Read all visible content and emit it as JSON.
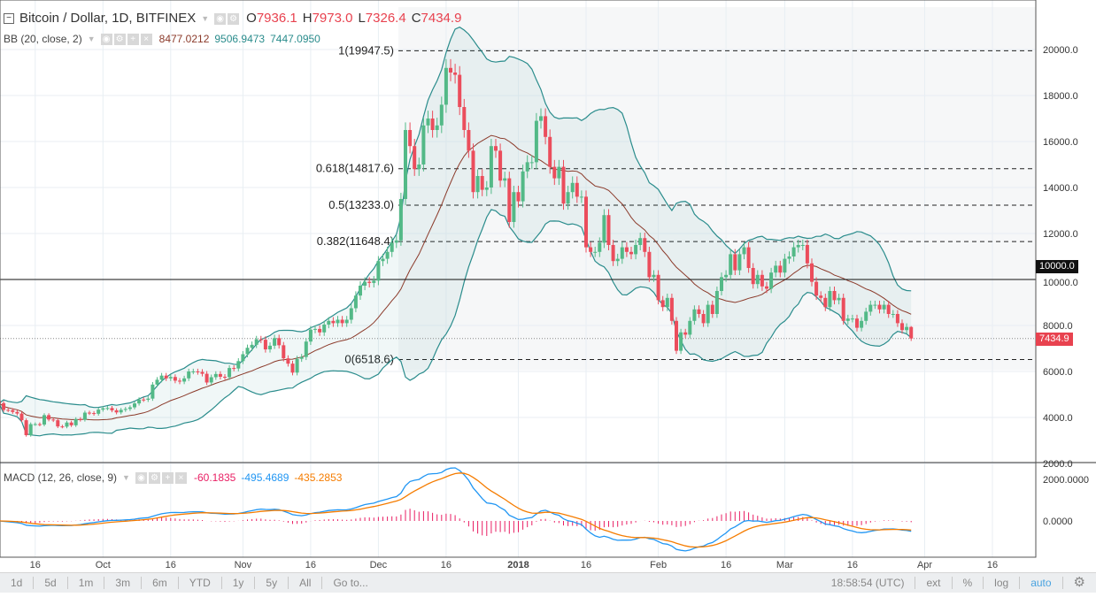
{
  "header": {
    "symbol": "Bitcoin / Dollar, 1D, BITFINEX",
    "open_label": "O",
    "open": "7936.1",
    "high_label": "H",
    "high": "7973.0",
    "low_label": "L",
    "low": "7326.4",
    "close_label": "C",
    "close": "7434.9"
  },
  "bb_legend": {
    "name": "BB (20, close, 2)",
    "basis": "8477.0212",
    "upper": "9506.9473",
    "lower": "7447.0950"
  },
  "macd_legend": {
    "name": "MACD (12, 26, close, 9)",
    "hist": "-60.1835",
    "macd": "-495.4689",
    "signal": "-435.2853"
  },
  "colors": {
    "up": "#53b987",
    "down": "#eb4d5c",
    "band": "#2a8c8c",
    "basis": "#8b3a2a",
    "macd": "#2196f3",
    "signal": "#f57c00",
    "hist": "#e91e63"
  },
  "price_axis": {
    "ticks": [
      "2000.0",
      "4000.0",
      "6000.0",
      "8000.0",
      "10000.0",
      "12000.0",
      "14000.0",
      "16000.0",
      "18000.0",
      "20000.0"
    ],
    "horizontal_line": "10000.0",
    "last_price": "7434.9"
  },
  "macd_axis": {
    "ticks": [
      "2000.0000",
      "0.0000"
    ]
  },
  "fib": [
    {
      "label": "1(19947.5)",
      "price": 19947.5
    },
    {
      "label": "0.618(14817.6)",
      "price": 14817.6
    },
    {
      "label": "0.5(13233.0)",
      "price": 13233.0
    },
    {
      "label": "0.382(11648.4)",
      "price": 11648.4
    },
    {
      "label": "0(6518.6)",
      "price": 6518.6
    }
  ],
  "time_axis": [
    {
      "text": "16",
      "date": "2017-09-16"
    },
    {
      "text": "Oct",
      "date": "2017-10-01"
    },
    {
      "text": "16",
      "date": "2017-10-16"
    },
    {
      "text": "Nov",
      "date": "2017-11-01"
    },
    {
      "text": "16",
      "date": "2017-11-16"
    },
    {
      "text": "Dec",
      "date": "2017-12-01"
    },
    {
      "text": "16",
      "date": "2017-12-16"
    },
    {
      "text": "2018",
      "date": "2018-01-01"
    },
    {
      "text": "16",
      "date": "2018-01-16"
    },
    {
      "text": "Feb",
      "date": "2018-02-01"
    },
    {
      "text": "16",
      "date": "2018-02-16"
    },
    {
      "text": "Mar",
      "date": "2018-03-01"
    },
    {
      "text": "16",
      "date": "2018-03-16"
    },
    {
      "text": "Apr",
      "date": "2018-04-01"
    },
    {
      "text": "16",
      "date": "2018-04-16"
    }
  ],
  "toolbar": {
    "ranges": [
      "1d",
      "5d",
      "1m",
      "3m",
      "6m",
      "YTD",
      "1y",
      "5y",
      "All"
    ],
    "goto": "Go to...",
    "time": "18:58:54 (UTC)",
    "ext": "ext",
    "percent": "%",
    "log": "log",
    "auto": "auto"
  },
  "chart_data": {
    "type": "candlestick",
    "title": "Bitcoin / Dollar, 1D, BITFINEX",
    "indicators": [
      "BB (20, close, 2)",
      "MACD (12, 26, close, 9)"
    ],
    "ylim": [
      2000,
      21500
    ],
    "grid": true,
    "last": {
      "open": 7936.1,
      "high": 7973.0,
      "low": 7326.4,
      "close": 7434.9
    },
    "candles": [
      [
        "2017-09-08",
        4620
      ],
      [
        "2017-09-09",
        4330
      ],
      [
        "2017-09-10",
        4320
      ],
      [
        "2017-09-11",
        4240
      ],
      [
        "2017-09-12",
        4170
      ],
      [
        "2017-09-13",
        3880
      ],
      [
        "2017-09-14",
        3230
      ],
      [
        "2017-09-15",
        3710
      ],
      [
        "2017-09-16",
        3710
      ],
      [
        "2017-09-17",
        3690
      ],
      [
        "2017-09-18",
        4100
      ],
      [
        "2017-09-19",
        3910
      ],
      [
        "2017-09-20",
        3880
      ],
      [
        "2017-09-21",
        3610
      ],
      [
        "2017-09-22",
        3600
      ],
      [
        "2017-09-23",
        3780
      ],
      [
        "2017-09-24",
        3660
      ],
      [
        "2017-09-25",
        3930
      ],
      [
        "2017-09-26",
        3900
      ],
      [
        "2017-09-27",
        4210
      ],
      [
        "2017-09-28",
        4190
      ],
      [
        "2017-09-29",
        4160
      ],
      [
        "2017-09-30",
        4340
      ],
      [
        "2017-10-01",
        4400
      ],
      [
        "2017-10-02",
        4410
      ],
      [
        "2017-10-03",
        4310
      ],
      [
        "2017-10-04",
        4220
      ],
      [
        "2017-10-05",
        4330
      ],
      [
        "2017-10-06",
        4370
      ],
      [
        "2017-10-07",
        4440
      ],
      [
        "2017-10-08",
        4610
      ],
      [
        "2017-10-09",
        4780
      ],
      [
        "2017-10-10",
        4770
      ],
      [
        "2017-10-11",
        4820
      ],
      [
        "2017-10-12",
        5430
      ],
      [
        "2017-10-13",
        5640
      ],
      [
        "2017-10-14",
        5820
      ],
      [
        "2017-10-15",
        5700
      ],
      [
        "2017-10-16",
        5760
      ],
      [
        "2017-10-17",
        5600
      ],
      [
        "2017-10-18",
        5560
      ],
      [
        "2017-10-19",
        5700
      ],
      [
        "2017-10-20",
        6000
      ],
      [
        "2017-10-21",
        6000
      ],
      [
        "2017-10-22",
        5980
      ],
      [
        "2017-10-23",
        5900
      ],
      [
        "2017-10-24",
        5520
      ],
      [
        "2017-10-25",
        5750
      ],
      [
        "2017-10-26",
        5890
      ],
      [
        "2017-10-27",
        5770
      ],
      [
        "2017-10-28",
        5750
      ],
      [
        "2017-10-29",
        6150
      ],
      [
        "2017-10-30",
        6130
      ],
      [
        "2017-10-31",
        6450
      ],
      [
        "2017-11-01",
        6750
      ],
      [
        "2017-11-02",
        7030
      ],
      [
        "2017-11-03",
        7160
      ],
      [
        "2017-11-04",
        7400
      ],
      [
        "2017-11-05",
        7380
      ],
      [
        "2017-11-06",
        6960
      ],
      [
        "2017-11-07",
        7120
      ],
      [
        "2017-11-08",
        7450
      ],
      [
        "2017-11-09",
        7140
      ],
      [
        "2017-11-10",
        6570
      ],
      [
        "2017-11-11",
        6340
      ],
      [
        "2017-11-12",
        5950
      ],
      [
        "2017-11-13",
        6550
      ],
      [
        "2017-11-14",
        6630
      ],
      [
        "2017-11-15",
        7300
      ],
      [
        "2017-11-16",
        7820
      ],
      [
        "2017-11-17",
        7850
      ],
      [
        "2017-11-18",
        7700
      ],
      [
        "2017-11-19",
        8040
      ],
      [
        "2017-11-20",
        8200
      ],
      [
        "2017-11-21",
        8100
      ],
      [
        "2017-11-22",
        8250
      ],
      [
        "2017-11-23",
        8100
      ],
      [
        "2017-11-24",
        8250
      ],
      [
        "2017-11-25",
        8750
      ],
      [
        "2017-11-26",
        9300
      ],
      [
        "2017-11-27",
        9730
      ],
      [
        "2017-11-28",
        9900
      ],
      [
        "2017-11-29",
        9850
      ],
      [
        "2017-11-30",
        9950
      ],
      [
        "2017-12-01",
        10800
      ],
      [
        "2017-12-02",
        10900
      ],
      [
        "2017-12-03",
        11200
      ],
      [
        "2017-12-04",
        11600
      ],
      [
        "2017-12-05",
        11700
      ],
      [
        "2017-12-06",
        13500
      ],
      [
        "2017-12-07",
        16500
      ],
      [
        "2017-12-08",
        15800
      ],
      [
        "2017-12-09",
        14800
      ],
      [
        "2017-12-10",
        15000
      ],
      [
        "2017-12-11",
        16700
      ],
      [
        "2017-12-12",
        17000
      ],
      [
        "2017-12-13",
        16500
      ],
      [
        "2017-12-14",
        16700
      ],
      [
        "2017-12-15",
        17600
      ],
      [
        "2017-12-16",
        19200
      ],
      [
        "2017-12-17",
        19000
      ],
      [
        "2017-12-18",
        18900
      ],
      [
        "2017-12-19",
        17500
      ],
      [
        "2017-12-20",
        16500
      ],
      [
        "2017-12-21",
        15600
      ],
      [
        "2017-12-22",
        13800
      ],
      [
        "2017-12-23",
        14500
      ],
      [
        "2017-12-24",
        13900
      ],
      [
        "2017-12-25",
        14000
      ],
      [
        "2017-12-26",
        15800
      ],
      [
        "2017-12-27",
        15600
      ],
      [
        "2017-12-28",
        14300
      ],
      [
        "2017-12-29",
        14400
      ],
      [
        "2017-12-30",
        12500
      ],
      [
        "2017-12-31",
        13800
      ],
      [
        "2018-01-01",
        13400
      ],
      [
        "2018-01-02",
        14700
      ],
      [
        "2018-01-03",
        15100
      ],
      [
        "2018-01-04",
        15100
      ],
      [
        "2018-01-05",
        16900
      ],
      [
        "2018-01-06",
        17100
      ],
      [
        "2018-01-07",
        16200
      ],
      [
        "2018-01-08",
        14900
      ],
      [
        "2018-01-09",
        14400
      ],
      [
        "2018-01-10",
        14900
      ],
      [
        "2018-01-11",
        13300
      ],
      [
        "2018-01-12",
        13800
      ],
      [
        "2018-01-13",
        14200
      ],
      [
        "2018-01-14",
        13600
      ],
      [
        "2018-01-15",
        13600
      ],
      [
        "2018-01-16",
        11400
      ],
      [
        "2018-01-17",
        11200
      ],
      [
        "2018-01-18",
        11200
      ],
      [
        "2018-01-19",
        11600
      ],
      [
        "2018-01-20",
        12800
      ],
      [
        "2018-01-21",
        11500
      ],
      [
        "2018-01-22",
        10800
      ],
      [
        "2018-01-23",
        10900
      ],
      [
        "2018-01-24",
        11400
      ],
      [
        "2018-01-25",
        11200
      ],
      [
        "2018-01-26",
        11100
      ],
      [
        "2018-01-27",
        11500
      ],
      [
        "2018-01-28",
        11800
      ],
      [
        "2018-01-29",
        11200
      ],
      [
        "2018-01-30",
        10100
      ],
      [
        "2018-01-31",
        10200
      ],
      [
        "2018-02-01",
        9100
      ],
      [
        "2018-02-02",
        8800
      ],
      [
        "2018-02-03",
        9200
      ],
      [
        "2018-02-04",
        8200
      ],
      [
        "2018-02-05",
        6900
      ],
      [
        "2018-02-06",
        7700
      ],
      [
        "2018-02-07",
        7600
      ],
      [
        "2018-02-08",
        8200
      ],
      [
        "2018-02-09",
        8700
      ],
      [
        "2018-02-10",
        8500
      ],
      [
        "2018-02-11",
        8100
      ],
      [
        "2018-02-12",
        8900
      ],
      [
        "2018-02-13",
        8500
      ],
      [
        "2018-02-14",
        9500
      ],
      [
        "2018-02-15",
        10100
      ],
      [
        "2018-02-16",
        10200
      ],
      [
        "2018-02-17",
        11100
      ],
      [
        "2018-02-18",
        10400
      ],
      [
        "2018-02-19",
        11100
      ],
      [
        "2018-02-20",
        11400
      ],
      [
        "2018-02-21",
        10500
      ],
      [
        "2018-02-22",
        9800
      ],
      [
        "2018-02-23",
        10200
      ],
      [
        "2018-02-24",
        9700
      ],
      [
        "2018-02-25",
        9600
      ],
      [
        "2018-02-26",
        10300
      ],
      [
        "2018-02-27",
        10600
      ],
      [
        "2018-02-28",
        10300
      ],
      [
        "2018-03-01",
        10900
      ],
      [
        "2018-03-02",
        11000
      ],
      [
        "2018-03-03",
        11400
      ],
      [
        "2018-03-04",
        11500
      ],
      [
        "2018-03-05",
        11500
      ],
      [
        "2018-03-06",
        10700
      ],
      [
        "2018-03-07",
        9900
      ],
      [
        "2018-03-08",
        9300
      ],
      [
        "2018-03-09",
        9200
      ],
      [
        "2018-03-10",
        8800
      ],
      [
        "2018-03-11",
        9500
      ],
      [
        "2018-03-12",
        9100
      ],
      [
        "2018-03-13",
        9200
      ],
      [
        "2018-03-14",
        8200
      ],
      [
        "2018-03-15",
        8300
      ],
      [
        "2018-03-16",
        8300
      ],
      [
        "2018-03-17",
        7900
      ],
      [
        "2018-03-18",
        8200
      ],
      [
        "2018-03-19",
        8600
      ],
      [
        "2018-03-20",
        8900
      ],
      [
        "2018-03-21",
        8900
      ],
      [
        "2018-03-22",
        8700
      ],
      [
        "2018-03-23",
        8900
      ],
      [
        "2018-03-24",
        8500
      ],
      [
        "2018-03-25",
        8500
      ],
      [
        "2018-03-26",
        8100
      ],
      [
        "2018-03-27",
        7800
      ],
      [
        "2018-03-28",
        7936.1
      ],
      [
        "2018-03-29",
        7434.9
      ]
    ]
  }
}
